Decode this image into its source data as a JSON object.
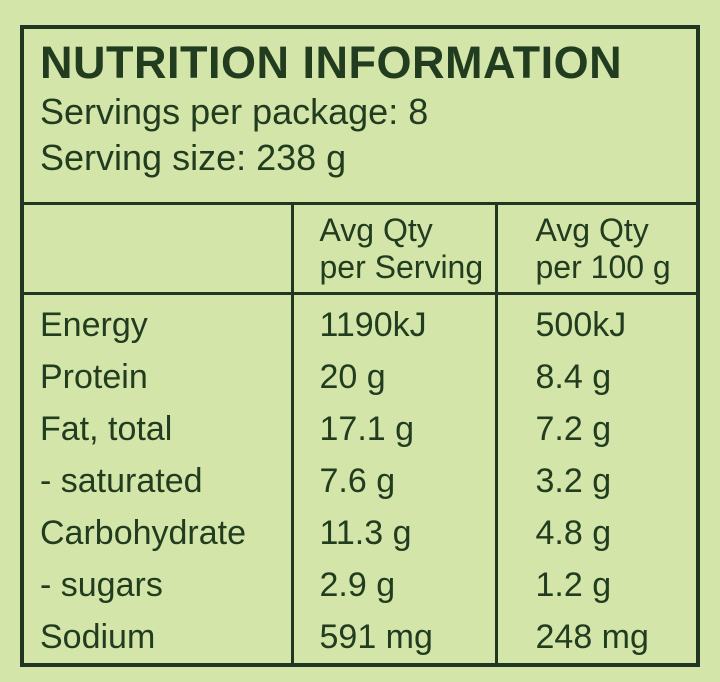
{
  "label": {
    "title": "NUTRITION INFORMATION",
    "servings_line": "Servings per package: 8",
    "serving_size_line": "Serving size: 238 g"
  },
  "table": {
    "col_headers": {
      "serving_line1": "Avg Qty",
      "serving_line2": "per Serving",
      "per100g_line1": "Avg Qty",
      "per100g_line2": "per 100 g"
    },
    "rows": [
      {
        "nutrient": "Energy",
        "per_serving": "1190kJ",
        "per_100g": "500kJ"
      },
      {
        "nutrient": "Protein",
        "per_serving": "20 g",
        "per_100g": "8.4 g"
      },
      {
        "nutrient": "Fat, total",
        "per_serving": "17.1 g",
        "per_100g": "7.2 g"
      },
      {
        "nutrient": "- saturated",
        "per_serving": "7.6 g",
        "per_100g": "3.2 g"
      },
      {
        "nutrient": "Carbohydrate",
        "per_serving": "11.3 g",
        "per_100g": "4.8 g"
      },
      {
        "nutrient": "- sugars",
        "per_serving": "2.9 g",
        "per_100g": "1.2 g"
      },
      {
        "nutrient": "Sodium",
        "per_serving": "591 mg",
        "per_100g": "248 mg"
      }
    ]
  },
  "colors": {
    "background": "#d3e5a9",
    "ink": "#223c20",
    "border": "#203620"
  }
}
